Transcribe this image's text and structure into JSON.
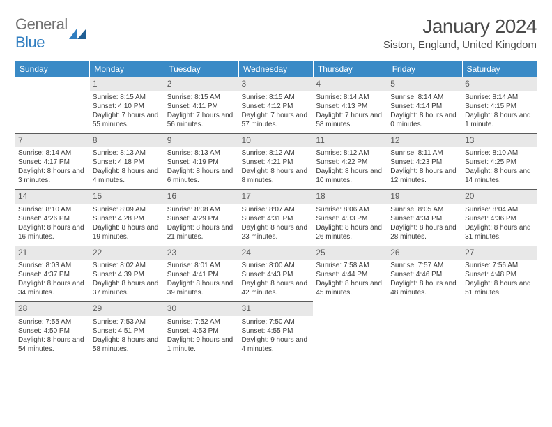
{
  "brand": {
    "part1": "General",
    "part2": "Blue"
  },
  "title": "January 2024",
  "location": "Siston, England, United Kingdom",
  "colors": {
    "header_bg": "#3a8ac6",
    "header_text": "#ffffff",
    "daynum_bg": "#e8e8e8",
    "rule": "#5b5b5b",
    "body_text": "#3a3a3a",
    "logo_grey": "#707070",
    "logo_blue": "#2f7dc0"
  },
  "dayHeaders": [
    "Sunday",
    "Monday",
    "Tuesday",
    "Wednesday",
    "Thursday",
    "Friday",
    "Saturday"
  ],
  "weeks": [
    [
      null,
      {
        "n": "1",
        "sr": "8:15 AM",
        "ss": "4:10 PM",
        "dl": "7 hours and 55 minutes."
      },
      {
        "n": "2",
        "sr": "8:15 AM",
        "ss": "4:11 PM",
        "dl": "7 hours and 56 minutes."
      },
      {
        "n": "3",
        "sr": "8:15 AM",
        "ss": "4:12 PM",
        "dl": "7 hours and 57 minutes."
      },
      {
        "n": "4",
        "sr": "8:14 AM",
        "ss": "4:13 PM",
        "dl": "7 hours and 58 minutes."
      },
      {
        "n": "5",
        "sr": "8:14 AM",
        "ss": "4:14 PM",
        "dl": "8 hours and 0 minutes."
      },
      {
        "n": "6",
        "sr": "8:14 AM",
        "ss": "4:15 PM",
        "dl": "8 hours and 1 minute."
      }
    ],
    [
      {
        "n": "7",
        "sr": "8:14 AM",
        "ss": "4:17 PM",
        "dl": "8 hours and 3 minutes."
      },
      {
        "n": "8",
        "sr": "8:13 AM",
        "ss": "4:18 PM",
        "dl": "8 hours and 4 minutes."
      },
      {
        "n": "9",
        "sr": "8:13 AM",
        "ss": "4:19 PM",
        "dl": "8 hours and 6 minutes."
      },
      {
        "n": "10",
        "sr": "8:12 AM",
        "ss": "4:21 PM",
        "dl": "8 hours and 8 minutes."
      },
      {
        "n": "11",
        "sr": "8:12 AM",
        "ss": "4:22 PM",
        "dl": "8 hours and 10 minutes."
      },
      {
        "n": "12",
        "sr": "8:11 AM",
        "ss": "4:23 PM",
        "dl": "8 hours and 12 minutes."
      },
      {
        "n": "13",
        "sr": "8:10 AM",
        "ss": "4:25 PM",
        "dl": "8 hours and 14 minutes."
      }
    ],
    [
      {
        "n": "14",
        "sr": "8:10 AM",
        "ss": "4:26 PM",
        "dl": "8 hours and 16 minutes."
      },
      {
        "n": "15",
        "sr": "8:09 AM",
        "ss": "4:28 PM",
        "dl": "8 hours and 19 minutes."
      },
      {
        "n": "16",
        "sr": "8:08 AM",
        "ss": "4:29 PM",
        "dl": "8 hours and 21 minutes."
      },
      {
        "n": "17",
        "sr": "8:07 AM",
        "ss": "4:31 PM",
        "dl": "8 hours and 23 minutes."
      },
      {
        "n": "18",
        "sr": "8:06 AM",
        "ss": "4:33 PM",
        "dl": "8 hours and 26 minutes."
      },
      {
        "n": "19",
        "sr": "8:05 AM",
        "ss": "4:34 PM",
        "dl": "8 hours and 28 minutes."
      },
      {
        "n": "20",
        "sr": "8:04 AM",
        "ss": "4:36 PM",
        "dl": "8 hours and 31 minutes."
      }
    ],
    [
      {
        "n": "21",
        "sr": "8:03 AM",
        "ss": "4:37 PM",
        "dl": "8 hours and 34 minutes."
      },
      {
        "n": "22",
        "sr": "8:02 AM",
        "ss": "4:39 PM",
        "dl": "8 hours and 37 minutes."
      },
      {
        "n": "23",
        "sr": "8:01 AM",
        "ss": "4:41 PM",
        "dl": "8 hours and 39 minutes."
      },
      {
        "n": "24",
        "sr": "8:00 AM",
        "ss": "4:43 PM",
        "dl": "8 hours and 42 minutes."
      },
      {
        "n": "25",
        "sr": "7:58 AM",
        "ss": "4:44 PM",
        "dl": "8 hours and 45 minutes."
      },
      {
        "n": "26",
        "sr": "7:57 AM",
        "ss": "4:46 PM",
        "dl": "8 hours and 48 minutes."
      },
      {
        "n": "27",
        "sr": "7:56 AM",
        "ss": "4:48 PM",
        "dl": "8 hours and 51 minutes."
      }
    ],
    [
      {
        "n": "28",
        "sr": "7:55 AM",
        "ss": "4:50 PM",
        "dl": "8 hours and 54 minutes."
      },
      {
        "n": "29",
        "sr": "7:53 AM",
        "ss": "4:51 PM",
        "dl": "8 hours and 58 minutes."
      },
      {
        "n": "30",
        "sr": "7:52 AM",
        "ss": "4:53 PM",
        "dl": "9 hours and 1 minute."
      },
      {
        "n": "31",
        "sr": "7:50 AM",
        "ss": "4:55 PM",
        "dl": "9 hours and 4 minutes."
      },
      null,
      null,
      null
    ]
  ],
  "labels": {
    "sunrise": "Sunrise:",
    "sunset": "Sunset:",
    "daylight": "Daylight:"
  }
}
